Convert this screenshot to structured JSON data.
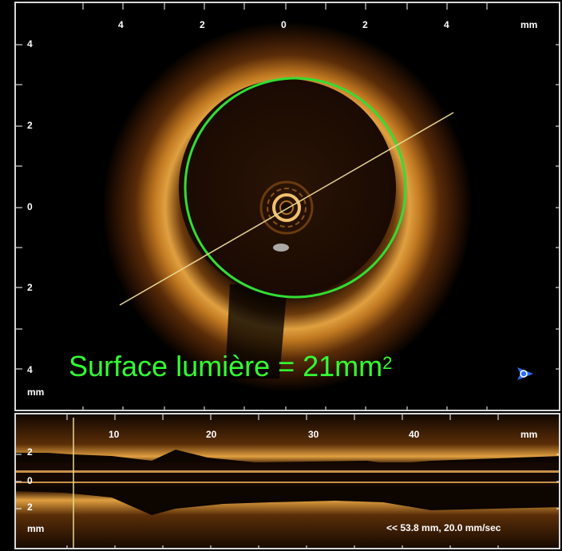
{
  "image": {
    "top_view": {
      "x_tick_labels": [
        "4",
        "2",
        "0",
        "2",
        "4"
      ],
      "x_unit": "mm",
      "y_tick_labels": [
        "4",
        "2",
        "0",
        "2",
        "4"
      ],
      "y_unit": "mm"
    },
    "caption": {
      "text": "Surface lumière = 21mm",
      "superscript": "2"
    },
    "longitudinal_view": {
      "x_tick_labels": [
        "10",
        "20",
        "30",
        "40"
      ],
      "x_unit": "mm",
      "y_tick_labels": [
        "2",
        "0",
        "2"
      ],
      "y_unit": "mm",
      "speed_text": "<< 53.8 mm, 20.0 mm/sec"
    },
    "icon": "octagon-navigation-icon",
    "colors": {
      "lumen_contour": "#33dd33",
      "tissue": "#d08a2a",
      "caption": "#33ff33",
      "cut_line": "#e8d890"
    }
  }
}
